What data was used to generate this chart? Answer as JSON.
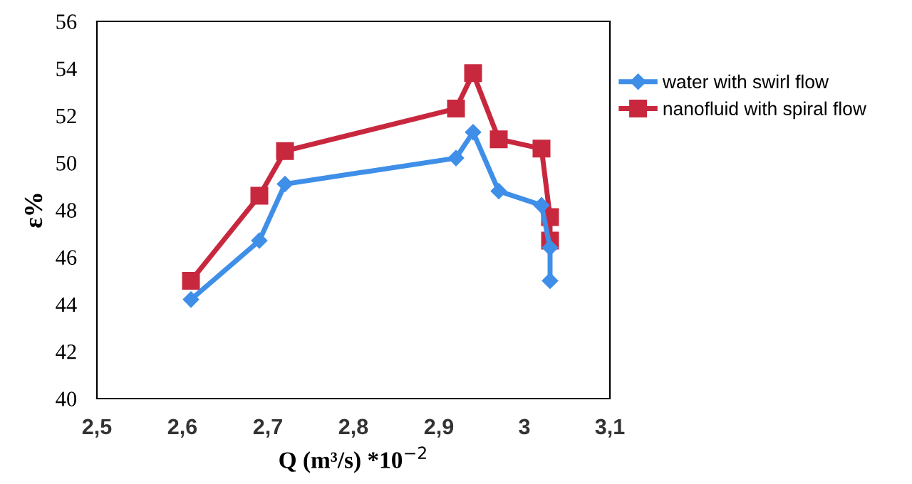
{
  "chart_data": {
    "type": "line",
    "xlabel": "Q (m³/s) *10$^{−2}$",
    "ylabel": "ε%",
    "xlim": [
      2.5,
      3.1
    ],
    "xticks": [
      {
        "value": 2.5,
        "label": "2,5"
      },
      {
        "value": 2.6,
        "label": "2,6"
      },
      {
        "value": 2.7,
        "label": "2,7"
      },
      {
        "value": 2.8,
        "label": "2,8"
      },
      {
        "value": 2.9,
        "label": "2,9"
      },
      3,
      {
        "value": 3.1,
        "label": "3,1"
      }
    ],
    "ylim": [
      40,
      56
    ],
    "yticks": [
      40,
      42,
      44,
      46,
      48,
      50,
      52,
      54,
      56
    ],
    "grid": false,
    "legend": "right",
    "series": [
      {
        "name": "water with swirl flow",
        "color": "#3f8fe8",
        "marker": "diamond",
        "x": [
          2.61,
          2.69,
          2.72,
          2.92,
          2.94,
          2.97,
          3.02,
          3.03,
          3.03
        ],
        "values": [
          44.2,
          46.7,
          49.1,
          50.2,
          51.3,
          48.8,
          48.2,
          46.4,
          45.0
        ]
      },
      {
        "name": "nanofluid with spiral flow",
        "color": "#c8283e",
        "marker": "square",
        "x": [
          2.61,
          2.69,
          2.72,
          2.92,
          2.94,
          2.97,
          3.02,
          3.03,
          3.03
        ],
        "values": [
          45.0,
          48.6,
          50.5,
          52.3,
          53.8,
          51.0,
          50.6,
          47.7,
          46.7
        ]
      }
    ]
  }
}
